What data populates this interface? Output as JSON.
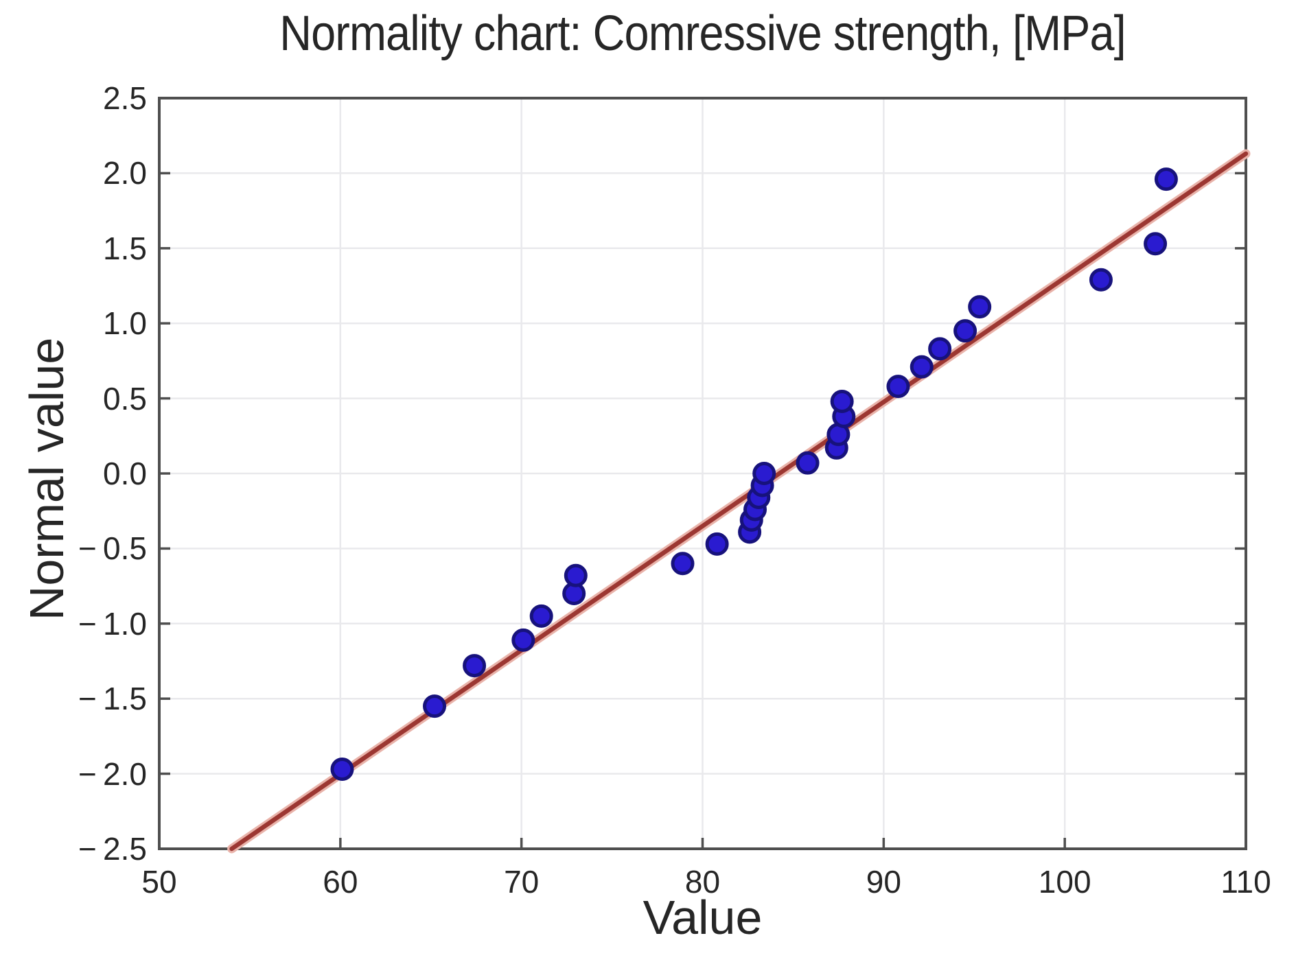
{
  "chart_data": {
    "type": "scatter",
    "title": "Normality chart: Comressive strength, [MPa]",
    "xlabel": "Value",
    "ylabel": "Normal value",
    "xlim": [
      50,
      110
    ],
    "ylim": [
      -2.5,
      2.5
    ],
    "x_ticks": [
      50,
      60,
      70,
      80,
      90,
      100,
      110
    ],
    "x_tick_labels": [
      "50",
      "60",
      "70",
      "80",
      "90",
      "100",
      "110"
    ],
    "y_ticks": [
      2.5,
      2.0,
      1.5,
      1.0,
      0.5,
      0.0,
      -0.5,
      -1.0,
      -1.5,
      -2.0,
      -2.5
    ],
    "y_tick_labels": [
      "2.5",
      "2.0",
      "1.5",
      "1.0",
      "0.5",
      "0.0",
      "− 0.5",
      "− 1.0",
      "− 1.5",
      "− 2.0",
      "− 2.5"
    ],
    "grid": true,
    "legend": "none",
    "points": [
      [
        60.1,
        -1.97
      ],
      [
        65.2,
        -1.55
      ],
      [
        67.4,
        -1.28
      ],
      [
        70.1,
        -1.11
      ],
      [
        71.1,
        -0.95
      ],
      [
        72.9,
        -0.8
      ],
      [
        73.0,
        -0.68
      ],
      [
        78.9,
        -0.6
      ],
      [
        80.8,
        -0.47
      ],
      [
        82.6,
        -0.39
      ],
      [
        82.7,
        -0.31
      ],
      [
        82.9,
        -0.24
      ],
      [
        83.1,
        -0.16
      ],
      [
        83.3,
        -0.08
      ],
      [
        83.4,
        0.0
      ],
      [
        85.8,
        0.07
      ],
      [
        87.4,
        0.17
      ],
      [
        87.5,
        0.26
      ],
      [
        87.8,
        0.38
      ],
      [
        87.7,
        0.48
      ],
      [
        90.8,
        0.58
      ],
      [
        92.1,
        0.71
      ],
      [
        93.1,
        0.83
      ],
      [
        94.5,
        0.95
      ],
      [
        95.3,
        1.11
      ],
      [
        102.0,
        1.29
      ],
      [
        105.0,
        1.53
      ],
      [
        105.6,
        1.96
      ]
    ],
    "fit_line": {
      "x1": 54.0,
      "y1": -2.5,
      "x2": 110.0,
      "y2": 2.13
    },
    "colors": {
      "point_fill": "#2a1bd0",
      "point_edge": "#17127c",
      "line": "#9c3732",
      "line_halo": "#e9b3aa",
      "grid": "#e9e9ec",
      "frame": "#4f4f4f",
      "text": "#262626",
      "background": "#ffffff"
    }
  }
}
